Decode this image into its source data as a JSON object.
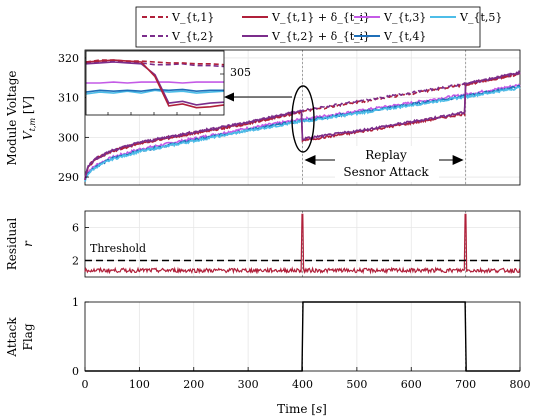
{
  "chart_data": [
    {
      "type": "line",
      "id": "voltage",
      "ylabel": "Module Voltage V_{t,m} [V]",
      "xlim": [
        0,
        800
      ],
      "ylim": [
        288,
        322
      ],
      "yticks": [
        290,
        300,
        310,
        320
      ],
      "grid": true,
      "legend": {
        "placement": "top",
        "entries": [
          {
            "label": "V_{t,1}",
            "style": "dashed",
            "color": "#b0203a"
          },
          {
            "label": "V_{t,1} + δ_{t_i}",
            "style": "solid",
            "color": "#b0203a"
          },
          {
            "label": "V_{t,3}",
            "style": "solid",
            "color": "#c45ae6"
          },
          {
            "label": "V_{t,5}",
            "style": "solid",
            "color": "#4dbde8"
          },
          {
            "label": "V_{t,2}",
            "style": "dashed",
            "color": "#7b2d8b"
          },
          {
            "label": "V_{t,2} + δ_{t_i}",
            "style": "solid",
            "color": "#7b2d8b"
          },
          {
            "label": "V_{t,4}",
            "style": "solid",
            "color": "#1f6fb8"
          }
        ]
      },
      "series": [
        {
          "name": "V_{t,1}",
          "color": "#b0203a",
          "style": "dashed",
          "x": [
            0,
            5,
            20,
            50,
            100,
            200,
            300,
            400,
            500,
            600,
            700,
            800
          ],
          "y": [
            289.5,
            292.5,
            294.5,
            296.5,
            298.5,
            301.0,
            303.5,
            306.5,
            308.8,
            311.0,
            313.3,
            316.0
          ]
        },
        {
          "name": "V_{t,2}",
          "color": "#7b2d8b",
          "style": "dashed",
          "x": [
            0,
            5,
            20,
            50,
            100,
            200,
            300,
            400,
            500,
            600,
            700,
            800
          ],
          "y": [
            289.6,
            292.7,
            294.7,
            296.7,
            298.7,
            301.3,
            303.8,
            306.8,
            309.0,
            311.2,
            313.5,
            316.3
          ]
        },
        {
          "name": "V_{t,1} + δ_{t_i}",
          "color": "#b0203a",
          "style": "solid",
          "x": [
            0,
            5,
            20,
            50,
            100,
            200,
            300,
            399,
            400,
            500,
            600,
            699,
            700,
            800
          ],
          "y": [
            289.5,
            292.5,
            294.5,
            296.5,
            298.5,
            301.0,
            303.5,
            306.4,
            299.2,
            301.3,
            303.6,
            306.0,
            313.3,
            316.0
          ]
        },
        {
          "name": "V_{t,2} + δ_{t_i}",
          "color": "#7b2d8b",
          "style": "solid",
          "x": [
            0,
            5,
            20,
            50,
            100,
            200,
            300,
            399,
            400,
            500,
            600,
            699,
            700,
            800
          ],
          "y": [
            289.6,
            292.7,
            294.7,
            296.7,
            298.7,
            301.3,
            303.8,
            306.7,
            299.6,
            301.6,
            303.9,
            306.3,
            313.5,
            316.3
          ]
        },
        {
          "name": "V_{t,3}",
          "color": "#c45ae6",
          "style": "solid",
          "x": [
            0,
            5,
            20,
            50,
            100,
            200,
            300,
            400,
            500,
            600,
            700,
            800
          ],
          "y": [
            289.2,
            291.3,
            293.0,
            295.0,
            297.0,
            299.7,
            302.3,
            304.6,
            306.6,
            308.7,
            310.8,
            313.2
          ]
        },
        {
          "name": "V_{t,4}",
          "color": "#1f6fb8",
          "style": "solid",
          "x": [
            0,
            5,
            20,
            50,
            100,
            200,
            300,
            400,
            500,
            600,
            700,
            800
          ],
          "y": [
            289.0,
            291.0,
            292.7,
            294.7,
            296.6,
            299.3,
            301.9,
            304.2,
            306.2,
            308.3,
            310.4,
            312.8
          ]
        },
        {
          "name": "V_{t,5}",
          "color": "#4dbde8",
          "style": "solid",
          "x": [
            0,
            5,
            20,
            50,
            100,
            200,
            300,
            400,
            500,
            600,
            700,
            800
          ],
          "y": [
            288.9,
            290.8,
            292.5,
            294.5,
            296.4,
            299.1,
            301.7,
            304.0,
            306.0,
            308.1,
            310.2,
            312.5
          ]
        }
      ],
      "annotations": {
        "replay_line1": "Replay",
        "replay_line2": "Sesnor Attack",
        "replay_span": [
          400,
          700
        ],
        "inset_tick": "305"
      }
    },
    {
      "type": "line",
      "id": "residual",
      "ylabel": "Residual r",
      "xlim": [
        0,
        800
      ],
      "ylim": [
        0,
        8
      ],
      "yticks": [
        2,
        6
      ],
      "grid": true,
      "threshold": {
        "label": "Threshold",
        "value": 2
      },
      "series": [
        {
          "name": "r",
          "color": "#b0203a",
          "baseline": 0.8,
          "noise": 0.25,
          "spikes": [
            {
              "x": 400,
              "y": 7.6
            },
            {
              "x": 700,
              "y": 7.6
            }
          ]
        }
      ]
    },
    {
      "type": "line",
      "id": "flag",
      "ylabel": "Attack Flag",
      "xlabel": "Time [s]",
      "xlim": [
        0,
        800
      ],
      "ylim": [
        0,
        1
      ],
      "xticks": [
        0,
        100,
        200,
        300,
        400,
        500,
        600,
        700,
        800
      ],
      "yticks": [
        0,
        1
      ],
      "grid": true,
      "series": [
        {
          "name": "flag",
          "color": "#000000",
          "x": [
            0,
            399,
            401,
            699,
            701,
            800
          ],
          "y": [
            0,
            0,
            1,
            1,
            0,
            0
          ]
        }
      ]
    }
  ]
}
